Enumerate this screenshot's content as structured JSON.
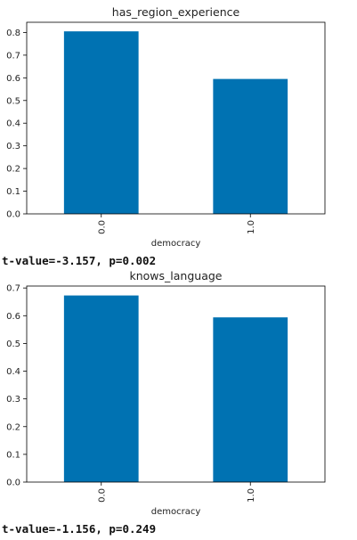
{
  "chart_data": [
    {
      "type": "bar",
      "title": "has_region_experience",
      "xlabel": "democracy",
      "ylabel": "",
      "categories": [
        "0.0",
        "1.0"
      ],
      "values": [
        0.805,
        0.595
      ],
      "ylim": [
        0,
        0.845
      ],
      "yticks": [
        "0.0",
        "0.1",
        "0.2",
        "0.3",
        "0.4",
        "0.5",
        "0.6",
        "0.7",
        "0.8"
      ],
      "bar_color": "#0072b2"
    },
    {
      "type": "bar",
      "title": "knows_language",
      "xlabel": "democracy",
      "ylabel": "",
      "categories": [
        "0.0",
        "1.0"
      ],
      "values": [
        0.673,
        0.594
      ],
      "ylim": [
        0,
        0.707
      ],
      "yticks": [
        "0.0",
        "0.1",
        "0.2",
        "0.3",
        "0.4",
        "0.5",
        "0.6",
        "0.7"
      ],
      "bar_color": "#0072b2"
    }
  ],
  "stats": [
    "t-value=-3.157, p=0.002",
    "t-value=-1.156, p=0.249"
  ]
}
